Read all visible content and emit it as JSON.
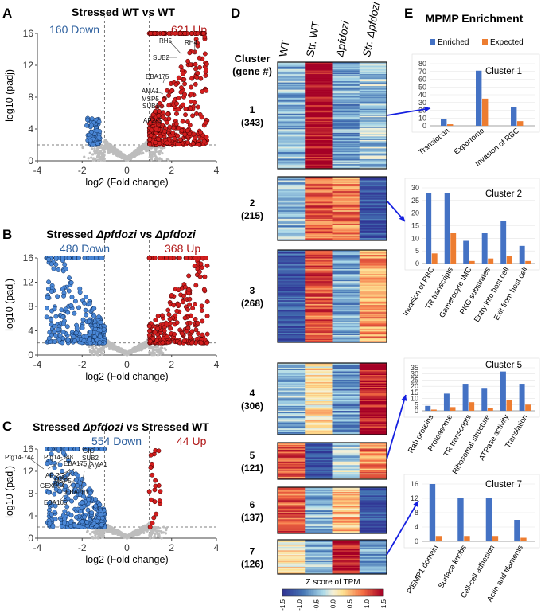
{
  "colors": {
    "up": "#d21e1e",
    "down": "#4a87d6",
    "ns": "#bdbdbd",
    "enriched": "#4472c4",
    "expected": "#ed7d31",
    "arrow": "#1520e0",
    "label_up": "#b01515",
    "label_down": "#2c5f9e"
  },
  "panel_labels": [
    "A",
    "B",
    "C",
    "D",
    "E"
  ],
  "chart_data": [
    {
      "type": "scatter",
      "id": "A",
      "title": "Stressed WT vs WT",
      "xlabel": "log2 (Fold change)",
      "ylabel": "-log10 (padj)",
      "xlim": [
        -4,
        4
      ],
      "ylim": [
        0,
        16
      ],
      "xticks": [
        -4,
        -2,
        0,
        2,
        4
      ],
      "yticks": [
        0,
        4,
        8,
        12,
        16
      ],
      "down_label": "160 Down",
      "up_label": "621 Up",
      "gene_labels": [
        "RH5",
        "RH4",
        "SUB2",
        "EBA175",
        "AMA1",
        "MSP5",
        "SUB1",
        "AP2-G"
      ],
      "thresholds": {
        "fc": 1,
        "p": 2
      }
    },
    {
      "type": "scatter",
      "id": "B",
      "title_prefix": "Stressed ",
      "title_italic1": "Δpfdozi",
      "title_mid": " vs ",
      "title_italic2": "Δpfdozi",
      "xlabel": "log2 (Fold change)",
      "ylabel": "-log10 (padj)",
      "xlim": [
        -4,
        4
      ],
      "ylim": [
        0,
        16
      ],
      "xticks": [
        -4,
        -2,
        0,
        2,
        4
      ],
      "yticks": [
        0,
        4,
        8,
        12,
        16
      ],
      "down_label": "480 Down",
      "up_label": "368 Up",
      "thresholds": {
        "fc": 1,
        "p": 2
      }
    },
    {
      "type": "scatter",
      "id": "C",
      "title_prefix": "Stressed ",
      "title_italic1": "Δpfdozi",
      "title_mid": " vs Stressed WT",
      "xlabel": "log2 (Fold change)",
      "ylabel": "-log10 (padj)",
      "xlim": [
        -4,
        4
      ],
      "ylim": [
        0,
        16
      ],
      "xticks": [
        -4,
        -2,
        0,
        2,
        4
      ],
      "yticks": [
        0,
        4,
        8,
        12,
        16
      ],
      "down_label": "554 Down",
      "up_label": "44 Up",
      "gene_labels": [
        "Pfg14-744",
        "Pfg14-748",
        "GIG",
        "SUB2",
        "EBA175",
        "AMA1",
        "AP-2G",
        "MSP5",
        "GEXP04",
        "EBA181",
        "EBA165"
      ],
      "thresholds": {
        "fc": 1,
        "p": 2
      }
    },
    {
      "type": "heatmap",
      "id": "D",
      "columns": [
        "WT",
        "Str. WT",
        "Δpfdozi",
        "Str. Δpfdozi"
      ],
      "row_header": [
        "Cluster",
        "(gene #)"
      ],
      "clusters": [
        {
          "name": "1",
          "count": "(343)",
          "pattern": [
            -0.5,
            1.5,
            -0.6,
            -0.4
          ]
        },
        {
          "name": "2",
          "count": "(215)",
          "pattern": [
            -0.5,
            1.0,
            0.8,
            -1.2
          ]
        },
        {
          "name": "3",
          "count": "(268)",
          "pattern": [
            -1.2,
            1.0,
            -0.6,
            0.7
          ]
        },
        {
          "name": "4",
          "count": "(306)",
          "pattern": [
            -0.5,
            0.2,
            -0.7,
            1.4
          ]
        },
        {
          "name": "5",
          "count": "(121)",
          "pattern": [
            1.0,
            -1.3,
            -0.3,
            0.8
          ]
        },
        {
          "name": "6",
          "count": "(137)",
          "pattern": [
            1.0,
            -0.5,
            0.5,
            -1.2
          ]
        },
        {
          "name": "7",
          "count": "(126)",
          "pattern": [
            0.2,
            -0.5,
            1.4,
            -0.6
          ]
        }
      ],
      "colorbar": {
        "title": "Z score of TPM",
        "ticks": [
          "-1.5",
          "-1.0",
          "-0.5",
          "0.0",
          "0.5",
          "1.0",
          "1.5"
        ],
        "min": -1.5,
        "max": 1.5
      }
    },
    {
      "type": "bar",
      "id": "E1",
      "title": "Cluster 1",
      "categories": [
        "Translocon",
        "Exportome",
        "Invasion of RBC"
      ],
      "series": [
        {
          "name": "Enriched",
          "values": [
            9,
            71,
            24
          ]
        },
        {
          "name": "Expected",
          "values": [
            2,
            35,
            6
          ]
        }
      ],
      "ylim": [
        0,
        80
      ],
      "yticks": [
        0,
        10,
        20,
        30,
        40,
        50,
        60,
        70,
        80
      ]
    },
    {
      "type": "bar",
      "id": "E2",
      "title": "Cluster 2",
      "categories": [
        "Invasion of RBC",
        "TR transcripts",
        "Gametocyte IMC",
        "PKG substrates",
        "Entry into host cell",
        "Exit from host cell"
      ],
      "series": [
        {
          "name": "Enriched",
          "values": [
            28,
            28,
            9,
            12,
            17,
            7
          ]
        },
        {
          "name": "Expected",
          "values": [
            4,
            12,
            1,
            2,
            3,
            1
          ]
        }
      ],
      "ylim": [
        0,
        30
      ],
      "yticks": [
        0,
        5,
        10,
        15,
        20,
        25,
        30
      ]
    },
    {
      "type": "bar",
      "id": "E5",
      "title": "Cluster 5",
      "categories": [
        "Rab proteins",
        "Proteasome",
        "TR transcripts",
        "Ribosomal structure",
        "ATPase activity",
        "Translation"
      ],
      "series": [
        {
          "name": "Enriched",
          "values": [
            4,
            14,
            22,
            18,
            32,
            22
          ]
        },
        {
          "name": "Expected",
          "values": [
            1,
            3,
            7,
            2,
            9,
            5
          ]
        }
      ],
      "ylim": [
        0,
        35
      ],
      "yticks": [
        0,
        5,
        10,
        15,
        20,
        25,
        30,
        35
      ]
    },
    {
      "type": "bar",
      "id": "E7",
      "title": "Cluster 7",
      "categories": [
        "PfEMP1 domain",
        "Surface knobs",
        "Cell-cell adhesion",
        "Actin and filaments"
      ],
      "series": [
        {
          "name": "Enriched",
          "values": [
            16,
            12,
            12,
            6
          ]
        },
        {
          "name": "Expected",
          "values": [
            1.5,
            1.5,
            1.5,
            1
          ]
        }
      ],
      "ylim": [
        0,
        16
      ],
      "yticks": [
        0,
        4,
        8,
        12,
        16
      ]
    }
  ],
  "enrichment": {
    "title": "MPMP Enrichment",
    "legend": [
      "Enriched",
      "Expected"
    ]
  }
}
